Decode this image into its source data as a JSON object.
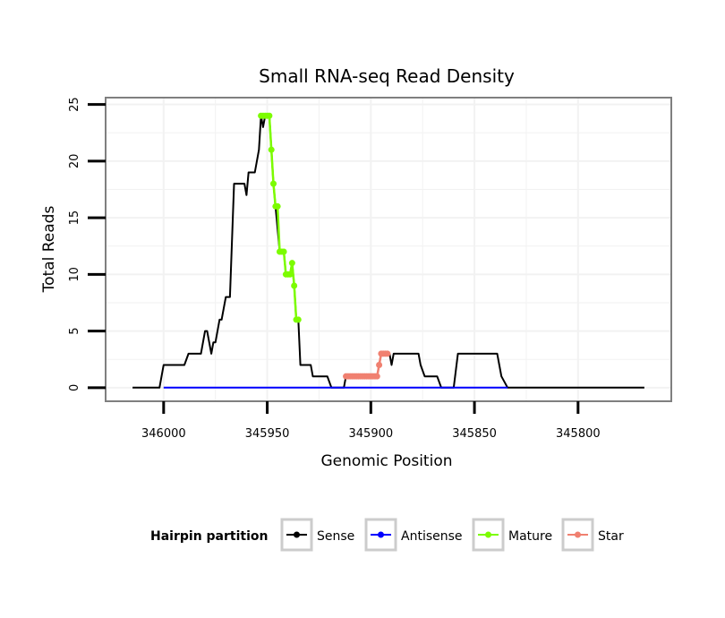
{
  "colors": {
    "sense": "#000000",
    "antisense": "#0000ff",
    "mature": "#7cfc00",
    "star": "#f08070",
    "panel_border": "#7f7f7f",
    "grid": "#f2f2f2",
    "legend_key_border": "#cccccc"
  },
  "chart_data": {
    "type": "line",
    "title": "Small RNA-seq Read Density",
    "xlabel": "Genomic Position",
    "ylabel": "Total Reads",
    "x_reversed": true,
    "xlim": [
      346028,
      345755
    ],
    "ylim": [
      -1.2,
      25.6
    ],
    "x_ticks": [
      346000,
      345950,
      345900,
      345850,
      345800
    ],
    "x_tick_labels": [
      "346000",
      "345950",
      "345900",
      "345850",
      "345800"
    ],
    "y_ticks": [
      0,
      5,
      10,
      15,
      20,
      25
    ],
    "y_tick_labels": [
      "0",
      "5",
      "10",
      "15",
      "20",
      "25"
    ],
    "grid": true,
    "legend": {
      "title": "Hairpin partition",
      "position": "bottom",
      "items": [
        {
          "name": "Sense",
          "color": "#000000"
        },
        {
          "name": "Antisense",
          "color": "#0000ff"
        },
        {
          "name": "Mature",
          "color": "#7cfc00"
        },
        {
          "name": "Star",
          "color": "#f08070"
        }
      ]
    },
    "series": [
      {
        "name": "Sense",
        "color": "#000000",
        "points": [
          [
            346015,
            0
          ],
          [
            346002,
            0
          ],
          [
            346000,
            2
          ],
          [
            345990,
            2
          ],
          [
            345988,
            3
          ],
          [
            345982,
            3
          ],
          [
            345980,
            5
          ],
          [
            345979,
            5
          ],
          [
            345977,
            3
          ],
          [
            345976,
            4
          ],
          [
            345975,
            4
          ],
          [
            345973,
            6
          ],
          [
            345972,
            6
          ],
          [
            345970,
            8
          ],
          [
            345968,
            8
          ],
          [
            345966,
            18
          ],
          [
            345961,
            18
          ],
          [
            345960,
            17
          ],
          [
            345959,
            19
          ],
          [
            345956,
            19
          ],
          [
            345954,
            21
          ],
          [
            345953,
            24
          ],
          [
            345952,
            23
          ],
          [
            345951,
            24
          ],
          [
            345949,
            24
          ],
          [
            345948,
            21
          ],
          [
            345947,
            18
          ],
          [
            345946,
            16
          ],
          [
            345944,
            12
          ],
          [
            345942,
            12
          ],
          [
            345941,
            10
          ],
          [
            345939,
            10
          ],
          [
            345938,
            11
          ],
          [
            345937,
            9
          ],
          [
            345936,
            6
          ],
          [
            345935,
            6
          ],
          [
            345934,
            2
          ],
          [
            345929,
            2
          ],
          [
            345928,
            1
          ],
          [
            345921,
            1
          ],
          [
            345919,
            0
          ],
          [
            345913,
            0
          ],
          [
            345912,
            1
          ],
          [
            345897,
            1
          ],
          [
            345896,
            2
          ],
          [
            345895,
            3
          ],
          [
            345891,
            3
          ],
          [
            345890,
            2
          ],
          [
            345889,
            3
          ],
          [
            345877,
            3
          ],
          [
            345876,
            2
          ],
          [
            345874,
            1
          ],
          [
            345868,
            1
          ],
          [
            345866,
            0
          ],
          [
            345860,
            0
          ],
          [
            345858,
            3
          ],
          [
            345839,
            3
          ],
          [
            345837,
            1
          ],
          [
            345834,
            0
          ],
          [
            345768,
            0
          ]
        ]
      },
      {
        "name": "Antisense",
        "color": "#0000ff",
        "points": [
          [
            346000,
            0
          ],
          [
            345834,
            0
          ]
        ]
      },
      {
        "name": "Mature",
        "color": "#7cfc00",
        "points": [
          [
            345953,
            24
          ],
          [
            345952,
            24
          ],
          [
            345951,
            24
          ],
          [
            345950,
            24
          ],
          [
            345949,
            24
          ],
          [
            345948,
            21
          ],
          [
            345947,
            18
          ],
          [
            345946,
            16
          ],
          [
            345945,
            16
          ],
          [
            345944,
            12
          ],
          [
            345943,
            12
          ],
          [
            345942,
            12
          ],
          [
            345941,
            10
          ],
          [
            345940,
            10
          ],
          [
            345939,
            10
          ],
          [
            345938,
            11
          ],
          [
            345937,
            9
          ],
          [
            345936,
            6
          ],
          [
            345935,
            6
          ]
        ]
      },
      {
        "name": "Star",
        "color": "#f08070",
        "points": [
          [
            345912,
            1
          ],
          [
            345911,
            1
          ],
          [
            345910,
            1
          ],
          [
            345909,
            1
          ],
          [
            345908,
            1
          ],
          [
            345907,
            1
          ],
          [
            345906,
            1
          ],
          [
            345905,
            1
          ],
          [
            345904,
            1
          ],
          [
            345903,
            1
          ],
          [
            345902,
            1
          ],
          [
            345901,
            1
          ],
          [
            345900,
            1
          ],
          [
            345899,
            1
          ],
          [
            345898,
            1
          ],
          [
            345897,
            1
          ],
          [
            345896,
            2
          ],
          [
            345895,
            3
          ],
          [
            345894,
            3
          ],
          [
            345893,
            3
          ],
          [
            345892,
            3
          ]
        ]
      }
    ]
  }
}
